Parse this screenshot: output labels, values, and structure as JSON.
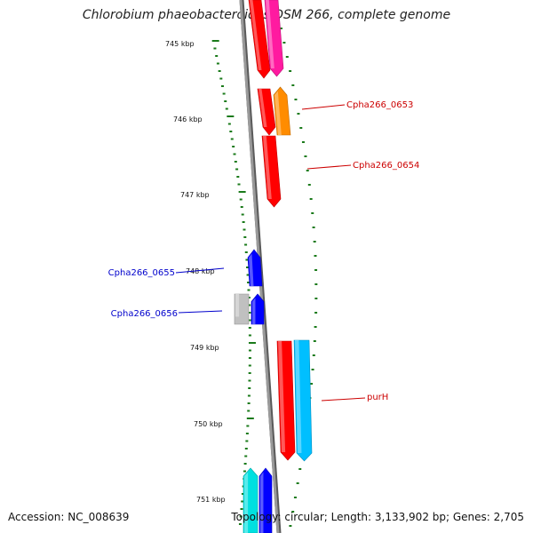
{
  "title": "Chlorobium phaeobacteroides DSM 266, complete genome",
  "accession": "Accession: NC_008639",
  "summary": "Topology: circular; Length: 3,133,902 bp; Genes: 2,705",
  "colors": {
    "backbone": "#8a8a8a",
    "tick": "#1a7a1a",
    "label_red": "#cc0000",
    "label_blue": "#0000cc"
  },
  "scale": {
    "labels": [
      "745 kbp",
      "746 kbp",
      "747 kbp",
      "748 kbp",
      "749 kbp",
      "750 kbp",
      "751 kbp"
    ]
  },
  "genes": [
    {
      "name": "gene-red-a",
      "color": "#ff0000",
      "strand": "reverse"
    },
    {
      "name": "gene-pink",
      "color": "#ff1aa0",
      "strand": "reverse"
    },
    {
      "name": "gene-red-b",
      "color": "#ff0000",
      "strand": "reverse"
    },
    {
      "name": "gene-orange",
      "color": "#ff8c00",
      "strand": "forward"
    },
    {
      "name": "gene-red-c",
      "color": "#ff0000",
      "strand": "reverse"
    },
    {
      "name": "gene-blue-a",
      "color": "#0000ff",
      "strand": "forward"
    },
    {
      "name": "gene-gray",
      "color": "#c0c0c0",
      "strand": "none"
    },
    {
      "name": "gene-blue-b",
      "color": "#0000ff",
      "strand": "forward"
    },
    {
      "name": "gene-red-purh",
      "color": "#ff0000",
      "strand": "reverse"
    },
    {
      "name": "gene-cyan-a",
      "color": "#00bfff",
      "strand": "reverse"
    },
    {
      "name": "gene-cyan-b",
      "color": "#00e0e0",
      "strand": "forward"
    },
    {
      "name": "gene-blue-c",
      "color": "#0000ff",
      "strand": "forward"
    }
  ],
  "gene_labels": [
    {
      "text": "Cpha266_0653",
      "color": "#cc0000"
    },
    {
      "text": "Cpha266_0654",
      "color": "#cc0000"
    },
    {
      "text": "Cpha266_0655",
      "color": "#0000cc"
    },
    {
      "text": "Cpha266_0656",
      "color": "#0000cc"
    },
    {
      "text": "purH",
      "color": "#cc0000"
    }
  ]
}
